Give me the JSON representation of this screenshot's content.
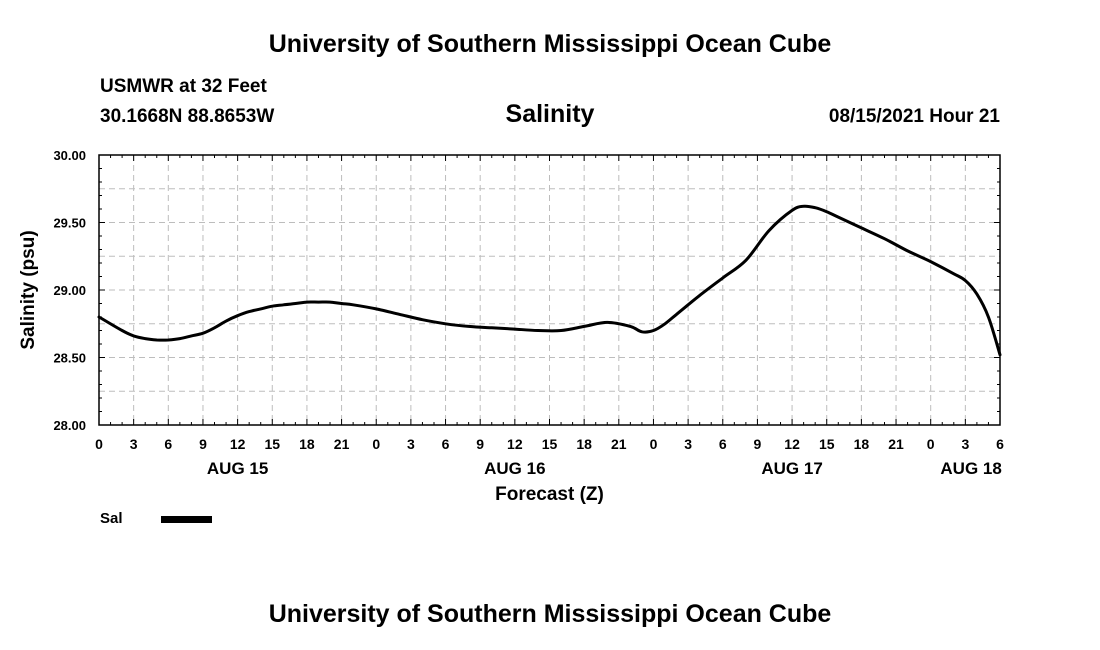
{
  "header": {
    "title": "University of Southern Mississippi Ocean Cube",
    "station": "USMWR at 32 Feet",
    "coordinates": "30.1668N  88.8653W",
    "datetime": "08/15/2021 Hour 21"
  },
  "footer": {
    "title": "University of Southern Mississippi Ocean Cube"
  },
  "legend": {
    "label": "Sal"
  },
  "chart_data": {
    "type": "line",
    "title": "Salinity",
    "xlabel": "Forecast (Z)",
    "ylabel": "Salinity (psu)",
    "ylim": [
      28.0,
      30.0
    ],
    "yticks": [
      "28.00",
      "28.50",
      "29.00",
      "29.50",
      "30.00"
    ],
    "xlim_hours": [
      0,
      78
    ],
    "xtick_labels": [
      "0",
      "3",
      "6",
      "9",
      "12",
      "15",
      "18",
      "21",
      "0",
      "3",
      "6",
      "9",
      "12",
      "15",
      "18",
      "21",
      "0",
      "3",
      "6",
      "9",
      "12",
      "15",
      "18",
      "21",
      "0",
      "3",
      "6"
    ],
    "date_labels": [
      {
        "label": "AUG 15",
        "hour": 12
      },
      {
        "label": "AUG 16",
        "hour": 36
      },
      {
        "label": "AUG 17",
        "hour": 60
      },
      {
        "label": "AUG 18",
        "hour": 75.5
      }
    ],
    "grid": true,
    "series": [
      {
        "name": "Sal",
        "color": "#000000",
        "x": [
          0,
          2,
          3,
          4,
          5,
          6,
          7,
          8,
          9,
          10,
          11,
          12,
          13,
          14,
          15,
          16,
          17,
          18,
          19,
          20,
          21,
          22,
          24,
          26,
          28,
          30,
          32,
          34,
          36,
          38,
          40,
          42,
          44,
          46,
          47,
          48,
          49,
          50,
          51,
          52,
          54,
          56,
          58,
          60,
          61,
          62,
          63,
          64,
          66,
          68,
          70,
          72,
          74,
          75,
          76,
          77,
          78
        ],
        "y": [
          28.8,
          28.7,
          28.66,
          28.64,
          28.63,
          28.63,
          28.64,
          28.66,
          28.68,
          28.72,
          28.77,
          28.81,
          28.84,
          28.86,
          28.88,
          28.89,
          28.9,
          28.91,
          28.91,
          28.91,
          28.9,
          28.89,
          28.86,
          28.82,
          28.78,
          28.75,
          28.73,
          28.72,
          28.71,
          28.7,
          28.7,
          28.73,
          28.76,
          28.73,
          28.69,
          28.7,
          28.75,
          28.82,
          28.89,
          28.96,
          29.09,
          29.22,
          29.44,
          29.59,
          29.62,
          29.61,
          29.58,
          29.54,
          29.46,
          29.38,
          29.29,
          29.21,
          29.12,
          29.07,
          28.97,
          28.8,
          28.52
        ]
      }
    ]
  }
}
